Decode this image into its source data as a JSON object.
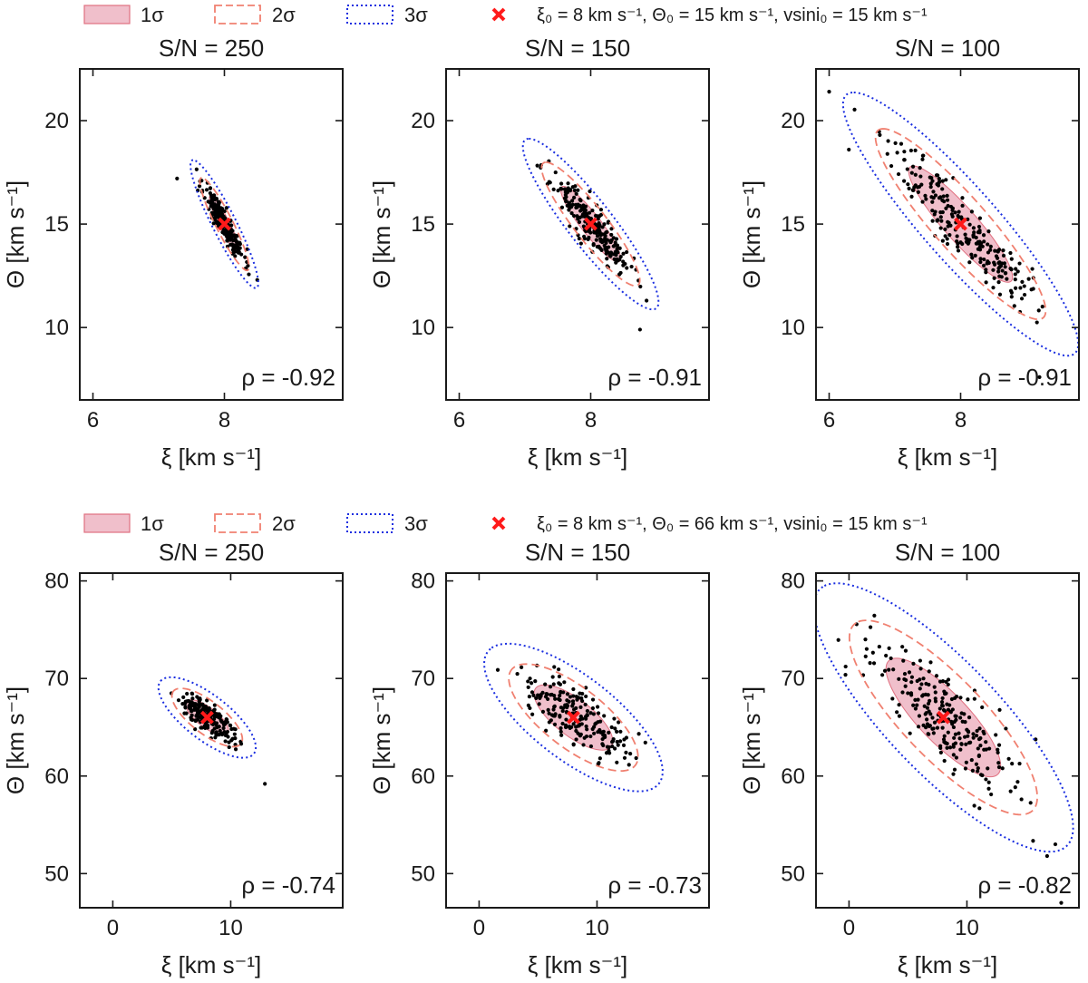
{
  "figure": {
    "rows": [
      {
        "legend": {
          "items": [
            {
              "key": "1s",
              "label": "1σ",
              "style": "filled"
            },
            {
              "key": "2s",
              "label": "2σ",
              "style": "dashed"
            },
            {
              "key": "3s",
              "label": "3σ",
              "style": "dotted"
            },
            {
              "key": "true",
              "label": "ξ₀ = 8 km s⁻¹, Θ₀ = 15 km s⁻¹, vsini₀ = 15 km s⁻¹",
              "style": "cross"
            }
          ]
        }
      },
      {
        "legend": {
          "items": [
            {
              "key": "1s",
              "label": "1σ",
              "style": "filled"
            },
            {
              "key": "2s",
              "label": "2σ",
              "style": "dashed"
            },
            {
              "key": "3s",
              "label": "3σ",
              "style": "dotted"
            },
            {
              "key": "true",
              "label": "ξ₀ = 8 km s⁻¹, Θ₀ = 66 km s⁻¹, vsini₀ = 15 km s⁻¹",
              "style": "cross"
            }
          ]
        }
      }
    ]
  },
  "colors": {
    "sigma1_fill": "#e48aa0",
    "sigma1_edge": "#e07080",
    "sigma2": "#f08070",
    "sigma3": "#1a2ee0",
    "points": "#000000",
    "truth": "#ff1a1a",
    "axes": "#1a1a1a"
  },
  "chart_data": [
    {
      "type": "scatter",
      "row": 0,
      "col": 0,
      "title": "S/N = 250",
      "xlabel": "ξ [km s⁻¹]",
      "ylabel": "Θ [km s⁻¹]",
      "xlim": [
        5.8,
        9.8
      ],
      "ylim": [
        6.5,
        22.5
      ],
      "xticks": [
        6,
        8
      ],
      "yticks": [
        10,
        15,
        20
      ],
      "truth": [
        8,
        15
      ],
      "sigma": [
        0.15,
        0.9
      ],
      "rho": -0.92,
      "rho_label": "ρ = -0.92",
      "n_points": 220,
      "extra_points": [
        [
          7.28,
          17.2
        ],
        [
          8.5,
          12.3
        ]
      ],
      "seed": 11
    },
    {
      "type": "scatter",
      "row": 0,
      "col": 1,
      "title": "S/N = 150",
      "xlabel": "ξ [km s⁻¹]",
      "ylabel": "Θ [km s⁻¹]",
      "xlim": [
        5.8,
        9.8
      ],
      "ylim": [
        6.5,
        22.5
      ],
      "xticks": [
        6,
        8
      ],
      "yticks": [
        10,
        15,
        20
      ],
      "truth": [
        8,
        15
      ],
      "sigma": [
        0.3,
        1.2
      ],
      "rho": -0.91,
      "rho_label": "ρ = -0.91",
      "n_points": 220,
      "extra_points": [
        [
          8.75,
          9.9
        ],
        [
          8.85,
          11.3
        ]
      ],
      "seed": 23
    },
    {
      "type": "scatter",
      "row": 0,
      "col": 2,
      "title": "S/N = 100",
      "xlabel": "ξ [km s⁻¹]",
      "ylabel": "Θ [km s⁻¹]",
      "xlim": [
        5.8,
        9.8
      ],
      "ylim": [
        6.5,
        22.5
      ],
      "xticks": [
        6,
        8
      ],
      "yticks": [
        10,
        15,
        20
      ],
      "truth": [
        8,
        15
      ],
      "sigma": [
        0.52,
        1.85
      ],
      "rho": -0.91,
      "rho_label": "ρ = -0.91",
      "n_points": 230,
      "extra_points": [
        [
          6.0,
          21.4
        ],
        [
          6.3,
          18.6
        ],
        [
          9.2,
          7.6
        ]
      ],
      "seed": 37
    },
    {
      "type": "scatter",
      "row": 1,
      "col": 0,
      "title": "S/N = 250",
      "xlabel": "ξ [km s⁻¹]",
      "ylabel": "Θ [km s⁻¹]",
      "xlim": [
        -2.8,
        19.5
      ],
      "ylim": [
        46.5,
        80.8
      ],
      "xticks": [
        0,
        10
      ],
      "yticks": [
        50,
        60,
        70,
        80
      ],
      "truth": [
        8,
        66
      ],
      "sigma": [
        1.2,
        1.2
      ],
      "rho": -0.74,
      "rho_label": "ρ = -0.74",
      "n_points": 200,
      "extra_points": [
        [
          12.9,
          59.2
        ]
      ],
      "seed": 51
    },
    {
      "type": "scatter",
      "row": 1,
      "col": 1,
      "title": "S/N = 150",
      "xlabel": "ξ [km s⁻¹]",
      "ylabel": "Θ [km s⁻¹]",
      "xlim": [
        -2.8,
        19.5
      ],
      "ylim": [
        46.5,
        80.8
      ],
      "xticks": [
        0,
        10
      ],
      "yticks": [
        50,
        60,
        70,
        80
      ],
      "truth": [
        8,
        66
      ],
      "sigma": [
        2.2,
        2.2
      ],
      "rho": -0.73,
      "rho_label": "ρ = -0.73",
      "n_points": 200,
      "extra_points": [],
      "seed": 67
    },
    {
      "type": "scatter",
      "row": 1,
      "col": 2,
      "title": "S/N = 100",
      "xlabel": "ξ [km s⁻¹]",
      "ylabel": "Θ [km s⁻¹]",
      "xlim": [
        -2.8,
        19.5
      ],
      "ylim": [
        46.5,
        80.8
      ],
      "xticks": [
        0,
        10
      ],
      "yticks": [
        50,
        60,
        70,
        80
      ],
      "truth": [
        8,
        66
      ],
      "sigma": [
        3.2,
        4.0
      ],
      "rho": -0.82,
      "rho_label": "ρ = -0.82",
      "n_points": 230,
      "extra_points": [
        [
          18.0,
          47.0
        ],
        [
          16.8,
          51.8
        ],
        [
          17.5,
          53.0
        ]
      ],
      "seed": 83
    }
  ]
}
